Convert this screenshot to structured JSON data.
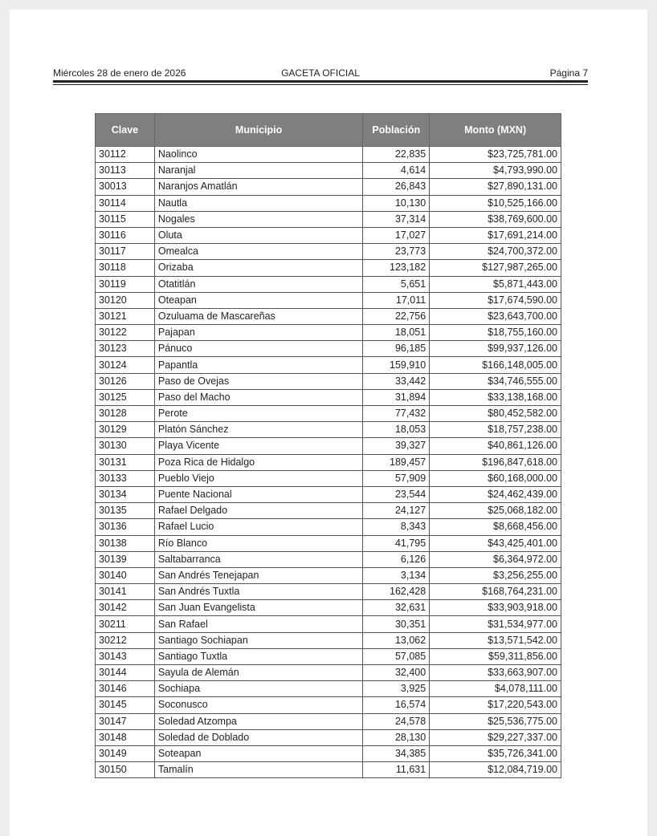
{
  "header": {
    "date": "Miércoles 28 de enero de 2026",
    "title": "GACETA OFICIAL",
    "page": "Página 7"
  },
  "table": {
    "columns": [
      "Clave",
      "Municipio",
      "Población",
      "Monto (MXN)"
    ],
    "rows": [
      [
        "30112",
        "Naolinco",
        "22,835",
        "$23,725,781.00"
      ],
      [
        "30113",
        "Naranjal",
        "4,614",
        "$4,793,990.00"
      ],
      [
        "30013",
        "Naranjos Amatlán",
        "26,843",
        "$27,890,131.00"
      ],
      [
        "30114",
        "Nautla",
        "10,130",
        "$10,525,166.00"
      ],
      [
        "30115",
        "Nogales",
        "37,314",
        "$38,769,600.00"
      ],
      [
        "30116",
        "Oluta",
        "17,027",
        "$17,691,214.00"
      ],
      [
        "30117",
        "Omealca",
        "23,773",
        "$24,700,372.00"
      ],
      [
        "30118",
        "Orizaba",
        "123,182",
        "$127,987,265.00"
      ],
      [
        "30119",
        "Otatitlán",
        "5,651",
        "$5,871,443.00"
      ],
      [
        "30120",
        "Oteapan",
        "17,011",
        "$17,674,590.00"
      ],
      [
        "30121",
        "Ozuluama de Mascareñas",
        "22,756",
        "$23,643,700.00"
      ],
      [
        "30122",
        "Pajapan",
        "18,051",
        "$18,755,160.00"
      ],
      [
        "30123",
        "Pánuco",
        "96,185",
        "$99,937,126.00"
      ],
      [
        "30124",
        "Papantla",
        "159,910",
        "$166,148,005.00"
      ],
      [
        "30126",
        "Paso de Ovejas",
        "33,442",
        "$34,746,555.00"
      ],
      [
        "30125",
        "Paso del Macho",
        "31,894",
        "$33,138,168.00"
      ],
      [
        "30128",
        "Perote",
        "77,432",
        "$80,452,582.00"
      ],
      [
        "30129",
        "Platón Sánchez",
        "18,053",
        "$18,757,238.00"
      ],
      [
        "30130",
        "Playa Vicente",
        "39,327",
        "$40,861,126.00"
      ],
      [
        "30131",
        "Poza Rica de Hidalgo",
        "189,457",
        "$196,847,618.00"
      ],
      [
        "30133",
        "Pueblo Viejo",
        "57,909",
        "$60,168,000.00"
      ],
      [
        "30134",
        "Puente Nacional",
        "23,544",
        "$24,462,439.00"
      ],
      [
        "30135",
        "Rafael Delgado",
        "24,127",
        "$25,068,182.00"
      ],
      [
        "30136",
        "Rafael Lucio",
        "8,343",
        "$8,668,456.00"
      ],
      [
        "30138",
        "Río Blanco",
        "41,795",
        "$43,425,401.00"
      ],
      [
        "30139",
        "Saltabarranca",
        "6,126",
        "$6,364,972.00"
      ],
      [
        "30140",
        "San Andrés Tenejapan",
        "3,134",
        "$3,256,255.00"
      ],
      [
        "30141",
        "San Andrés Tuxtla",
        "162,428",
        "$168,764,231.00"
      ],
      [
        "30142",
        "San Juan Evangelista",
        "32,631",
        "$33,903,918.00"
      ],
      [
        "30211",
        "San Rafael",
        "30,351",
        "$31,534,977.00"
      ],
      [
        "30212",
        "Santiago Sochiapan",
        "13,062",
        "$13,571,542.00"
      ],
      [
        "30143",
        "Santiago Tuxtla",
        "57,085",
        "$59,311,856.00"
      ],
      [
        "30144",
        "Sayula de Alemán",
        "32,400",
        "$33,663,907.00"
      ],
      [
        "30146",
        "Sochiapa",
        "3,925",
        "$4,078,111.00"
      ],
      [
        "30145",
        "Soconusco",
        "16,574",
        "$17,220,543.00"
      ],
      [
        "30147",
        "Soledad Atzompa",
        "24,578",
        "$25,536,775.00"
      ],
      [
        "30148",
        "Soledad de Doblado",
        "28,130",
        "$29,227,337.00"
      ],
      [
        "30149",
        "Soteapan",
        "34,385",
        "$35,726,341.00"
      ],
      [
        "30150",
        "Tamalín",
        "11,631",
        "$12,084,719.00"
      ]
    ]
  },
  "colors": {
    "header_bg": "#7f7f7f",
    "header_text": "#ffffff"
  }
}
